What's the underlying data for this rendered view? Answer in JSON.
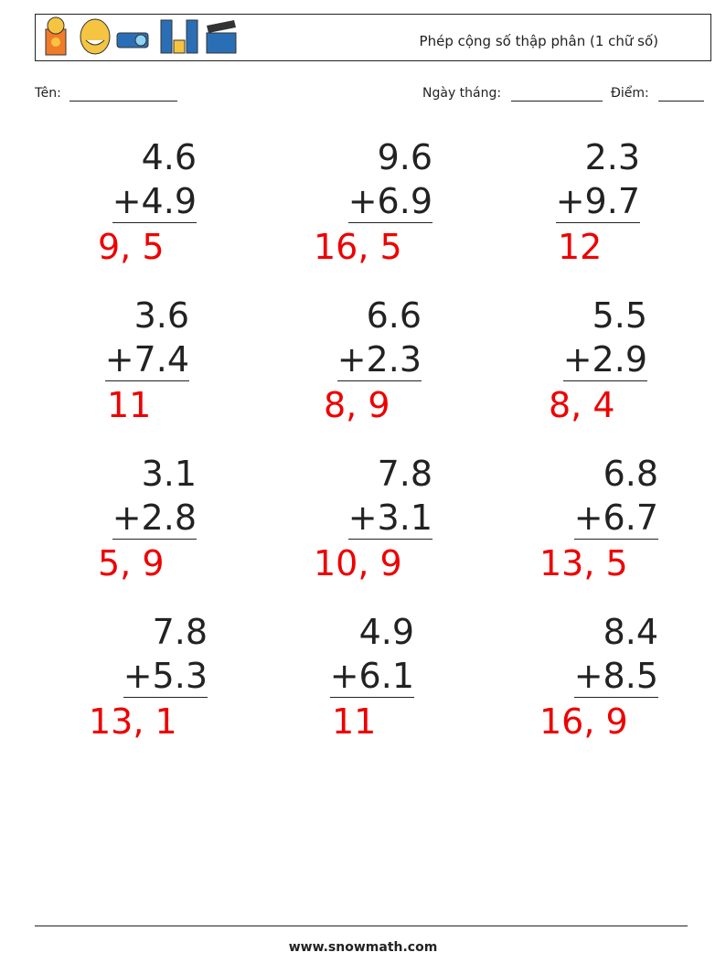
{
  "header": {
    "title": "Phép cộng số thập phân (1 chữ số)"
  },
  "fields": {
    "name": "Tên:",
    "date": "Ngày tháng:",
    "score": "Điểm:"
  },
  "problems": [
    {
      "top": "4.6",
      "bottom": "+4.9",
      "answer": "9, 5"
    },
    {
      "top": "9.6",
      "bottom": "+6.9",
      "answer": "16, 5"
    },
    {
      "top": "2.3",
      "bottom": "+9.7",
      "answer": "12"
    },
    {
      "top": "3.6",
      "bottom": "+7.4",
      "answer": "11"
    },
    {
      "top": "6.6",
      "bottom": "+2.3",
      "answer": "8, 9"
    },
    {
      "top": "5.5",
      "bottom": "+2.9",
      "answer": "8, 4"
    },
    {
      "top": "3.1",
      "bottom": "+2.8",
      "answer": "5, 9"
    },
    {
      "top": "7.8",
      "bottom": "+3.1",
      "answer": "10, 9"
    },
    {
      "top": "6.8",
      "bottom": "+6.7",
      "answer": "13, 5"
    },
    {
      "top": "7.8",
      "bottom": "+5.3",
      "answer": "13, 1"
    },
    {
      "top": "4.9",
      "bottom": "+6.1",
      "answer": "11"
    },
    {
      "top": "8.4",
      "bottom": "+8.5",
      "answer": "16, 9"
    }
  ],
  "footer": {
    "site": "www.snowmath.com"
  }
}
